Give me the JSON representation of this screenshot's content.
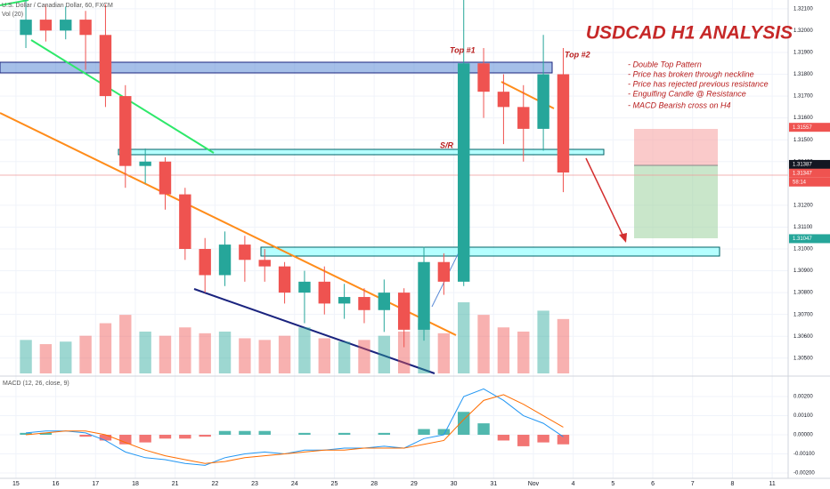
{
  "chart_data": {
    "type": "candlestick",
    "title": "USDCAD H1 ANALYSIS",
    "symbol": "U.S. Dollar / Canadian Dollar, 60, FXCM",
    "volume_label": "Vol (20)",
    "macd_label": "MACD (12, 26, close, 9)",
    "notes": [
      "- Double Top Pattern",
      "- Price has broken through neckline",
      "- Price has rejected previous resistance",
      "- Engulfing Candle @ Resistance",
      "- MACD Bearish cross on H4"
    ],
    "annotations": [
      "Top #1",
      "Top #2",
      "S/R"
    ],
    "up_color": "#26a69a",
    "down_color": "#ef5350",
    "x": [
      0.25,
      0.75,
      1.25,
      1.75,
      2.25,
      2.75,
      3.25,
      3.75,
      4.25,
      4.75,
      5.25,
      5.75,
      6.25,
      6.75,
      7.25,
      7.75,
      8.25,
      8.75,
      9.25,
      9.75,
      10.25,
      10.75,
      11.25,
      11.75,
      12.25,
      12.75,
      13.25,
      13.75
    ],
    "open": [
      1.3198,
      1.3205,
      1.32,
      1.3205,
      1.3198,
      1.317,
      1.3138,
      1.314,
      1.3125,
      1.31,
      1.3088,
      1.3102,
      1.3095,
      1.3092,
      1.308,
      1.3085,
      1.3075,
      1.3078,
      1.3072,
      1.308,
      1.3063,
      1.3094,
      1.3085,
      1.3185,
      1.3172,
      1.3165,
      1.3155,
      1.318
    ],
    "high": [
      1.3215,
      1.3212,
      1.3211,
      1.3209,
      1.3212,
      1.3175,
      1.3146,
      1.3142,
      1.3128,
      1.3105,
      1.3108,
      1.3106,
      1.31,
      1.3094,
      1.309,
      1.3092,
      1.3084,
      1.3082,
      1.3086,
      1.3082,
      1.3101,
      1.3098,
      1.3215,
      1.3192,
      1.318,
      1.3175,
      1.3198,
      1.3192
    ],
    "low": [
      1.3192,
      1.3195,
      1.3196,
      1.3182,
      1.3165,
      1.3128,
      1.313,
      1.3118,
      1.3095,
      1.308,
      1.3083,
      1.3085,
      1.3085,
      1.3075,
      1.3066,
      1.307,
      1.3068,
      1.3066,
      1.3062,
      1.3055,
      1.3058,
      1.3079,
      1.3083,
      1.316,
      1.3148,
      1.314,
      1.3145,
      1.3126
    ],
    "close": [
      1.3205,
      1.32,
      1.3205,
      1.3198,
      1.317,
      1.3138,
      1.314,
      1.3125,
      1.31,
      1.3088,
      1.3102,
      1.3095,
      1.3092,
      1.308,
      1.3085,
      1.3075,
      1.3078,
      1.3072,
      1.308,
      1.3063,
      1.3094,
      1.3085,
      1.3185,
      1.3172,
      1.3165,
      1.3155,
      1.318,
      1.3135
    ],
    "volume": [
      40,
      35,
      38,
      45,
      60,
      70,
      50,
      45,
      55,
      48,
      50,
      42,
      40,
      45,
      55,
      42,
      38,
      40,
      45,
      50,
      60,
      48,
      85,
      70,
      55,
      50,
      75,
      65
    ],
    "macd": {
      "color": "#2196f3",
      "values": [
        0.0001,
        0.0002,
        0.0002,
        0.0001,
        -0.0003,
        -0.0009,
        -0.0012,
        -0.0013,
        -0.0015,
        -0.0016,
        -0.0012,
        -0.001,
        -0.0009,
        -0.001,
        -0.0008,
        -0.0008,
        -0.0007,
        -0.0007,
        -0.0006,
        -0.0007,
        -0.0002,
        0.0,
        0.002,
        0.0024,
        0.0018,
        0.001,
        0.0006,
        -0.0001
      ]
    },
    "signal": {
      "color": "#ff6d00",
      "values": [
        0.0,
        0.0001,
        0.0002,
        0.0002,
        0.0,
        -0.0004,
        -0.0008,
        -0.0011,
        -0.0013,
        -0.0015,
        -0.0014,
        -0.0012,
        -0.0011,
        -0.001,
        -0.0009,
        -0.0008,
        -0.0008,
        -0.0007,
        -0.0007,
        -0.0007,
        -0.0005,
        -0.0003,
        0.0008,
        0.0018,
        0.0021,
        0.0016,
        0.001,
        0.0004
      ]
    },
    "histogram": [
      0.0001,
      0.0001,
      0.0,
      -0.0001,
      -0.0003,
      -0.0005,
      -0.0004,
      -0.0002,
      -0.0002,
      -0.0001,
      0.0002,
      0.0002,
      0.0002,
      0.0,
      0.0001,
      0.0,
      0.0001,
      0.0,
      0.0001,
      0.0,
      0.0003,
      0.0003,
      0.0012,
      0.0006,
      -0.0003,
      -0.0006,
      -0.0004,
      -0.0005
    ],
    "xlim": [
      -0.4,
      19.4
    ],
    "xticks": [
      {
        "value": 0,
        "label": "15"
      },
      {
        "value": 1,
        "label": "16"
      },
      {
        "value": 2,
        "label": "17"
      },
      {
        "value": 3,
        "label": "18"
      },
      {
        "value": 4,
        "label": "21"
      },
      {
        "value": 5,
        "label": "22"
      },
      {
        "value": 6,
        "label": "23"
      },
      {
        "value": 7,
        "label": "24"
      },
      {
        "value": 8,
        "label": "25"
      },
      {
        "value": 9,
        "label": "28"
      },
      {
        "value": 10,
        "label": "29"
      },
      {
        "value": 11,
        "label": "30"
      },
      {
        "value": 12,
        "label": "31"
      },
      {
        "value": 13,
        "label": "Nov"
      },
      {
        "value": 14,
        "label": "4"
      },
      {
        "value": 15,
        "label": "5"
      },
      {
        "value": 16,
        "label": "6"
      },
      {
        "value": 17,
        "label": "7"
      },
      {
        "value": 18,
        "label": "8"
      },
      {
        "value": 19,
        "label": "11"
      }
    ],
    "ylim": [
      1.3043,
      1.3214
    ],
    "yticks": [
      {
        "value": 1.321,
        "label": "1.32100"
      },
      {
        "value": 1.32,
        "label": "1.32000"
      },
      {
        "value": 1.319,
        "label": "1.31900"
      },
      {
        "value": 1.318,
        "label": "1.31800"
      },
      {
        "value": 1.317,
        "label": "1.31700"
      },
      {
        "value": 1.316,
        "label": "1.31600"
      },
      {
        "value": 1.315,
        "label": "1.31500"
      },
      {
        "value": 1.314,
        "label": "1.31400"
      },
      {
        "value": 1.312,
        "label": "1.31200"
      },
      {
        "value": 1.311,
        "label": "1.31100"
      },
      {
        "value": 1.31,
        "label": "1.31000"
      },
      {
        "value": 1.309,
        "label": "1.30900"
      },
      {
        "value": 1.308,
        "label": "1.30800"
      },
      {
        "value": 1.307,
        "label": "1.30700"
      },
      {
        "value": 1.306,
        "label": "1.30600"
      },
      {
        "value": 1.305,
        "label": "1.30500"
      }
    ],
    "macd_ylim": [
      -0.00228,
      0.00298
    ],
    "macd_yticks": [
      {
        "value": 0.002,
        "label": "0.00200"
      },
      {
        "value": 0.001,
        "label": "0.00100"
      },
      {
        "value": 0,
        "label": "0.00000"
      },
      {
        "value": -0.001,
        "label": "-0.00100"
      },
      {
        "value": -0.002,
        "label": "-0.00200"
      }
    ],
    "price_markers": [
      {
        "value": 1.31557,
        "label": "1.31557",
        "color": "#ef5350"
      },
      {
        "value": 1.31387,
        "label": "1.31387",
        "color": "#131722"
      },
      {
        "value": 1.31347,
        "label": "1.31347",
        "color": "#ef5350"
      },
      {
        "value": 1.31047,
        "label": "1.31047",
        "color": "#26a69a"
      }
    ],
    "countdown": "58:14",
    "grid": true
  }
}
